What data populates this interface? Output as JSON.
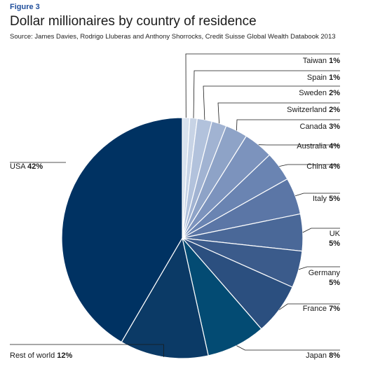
{
  "figure_label": "Figure 3",
  "title": "Dollar millionaires by country of residence",
  "source": "Source: James Davies, Rodrigo Lluberas and Anthony Shorrocks, Credit Suisse Global Wealth Databook 2013",
  "chart_data": {
    "type": "pie",
    "title": "Dollar millionaires by country of residence",
    "unit": "%",
    "slices": [
      {
        "label": "Taiwan",
        "value": 1,
        "value_label": "1%",
        "color": "#d9e2ee"
      },
      {
        "label": "Spain",
        "value": 1,
        "value_label": "1%",
        "color": "#c7d3e5"
      },
      {
        "label": "Sweden",
        "value": 2,
        "value_label": "2%",
        "color": "#b2c2dc"
      },
      {
        "label": "Switzerland",
        "value": 2,
        "value_label": "2%",
        "color": "#a1b3d2"
      },
      {
        "label": "Canada",
        "value": 3,
        "value_label": "3%",
        "color": "#8ea3c7"
      },
      {
        "label": "Australia",
        "value": 4,
        "value_label": "4%",
        "color": "#7c93bd"
      },
      {
        "label": "China",
        "value": 4,
        "value_label": "4%",
        "color": "#6a84b2"
      },
      {
        "label": "Italy",
        "value": 5,
        "value_label": "5%",
        "color": "#5b76a6"
      },
      {
        "label": "UK",
        "value": 5,
        "value_label": "5%",
        "color": "#4a6898"
      },
      {
        "label": "Germany",
        "value": 5,
        "value_label": "5%",
        "color": "#3b5b8b"
      },
      {
        "label": "France",
        "value": 7,
        "value_label": "7%",
        "color": "#2b4f7f"
      },
      {
        "label": "Japan",
        "value": 8,
        "value_label": "8%",
        "color": "#034b73"
      },
      {
        "label": "Rest of world",
        "value": 12,
        "value_label": "12%",
        "color": "#0b3a66"
      },
      {
        "label": "USA",
        "value": 42,
        "value_label": "42%",
        "color": "#003262"
      }
    ]
  }
}
